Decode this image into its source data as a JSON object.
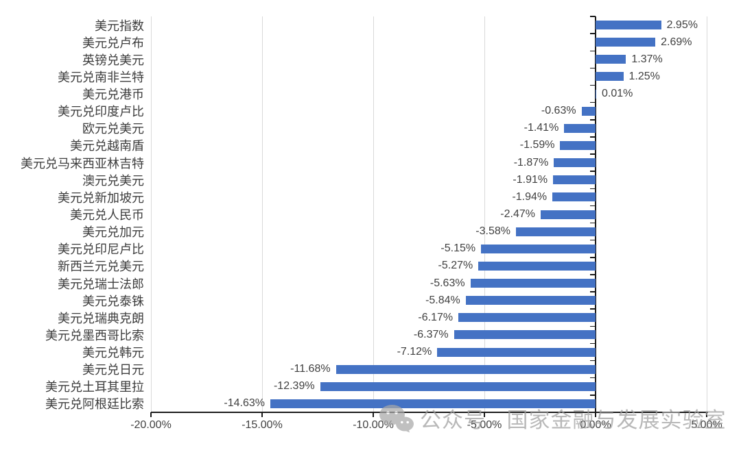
{
  "page": {
    "background": "#ffffff"
  },
  "chart_data": {
    "type": "bar",
    "orientation": "horizontal",
    "title": "",
    "xlabel": "",
    "ylabel": "",
    "grid": true,
    "xlim": [
      -20,
      5
    ],
    "tick_values": [
      -20,
      -15,
      -10,
      -5,
      0,
      5
    ],
    "tick_labels": [
      "-20.00%",
      "-15.00%",
      "-10.00%",
      "-5.00%",
      "0.00%",
      "5.00%"
    ],
    "bar_color": "#4472C4",
    "gridline_color": "#d9d9d9",
    "axis_color": "#1a1a1a",
    "categories": [
      "美元指数",
      "美元兑卢布",
      "英镑兑美元",
      "美元兑南非兰特",
      "美元兑港币",
      "美元兑印度卢比",
      "欧元兑美元",
      "美元兑越南盾",
      "美元兑马来西亚林吉特",
      "澳元兑美元",
      "美元兑新加坡元",
      "美元兑人民币",
      "美元兑加元",
      "美元兑印尼卢比",
      "新西兰元兑美元",
      "美元兑瑞士法郎",
      "美元兑泰铢",
      "美元兑瑞典克朗",
      "美元兑墨西哥比索",
      "美元兑韩元",
      "美元兑日元",
      "美元兑土耳其里拉",
      "美元兑阿根廷比索"
    ],
    "values": [
      2.95,
      2.69,
      1.37,
      1.25,
      0.01,
      -0.63,
      -1.41,
      -1.59,
      -1.87,
      -1.91,
      -1.94,
      -2.47,
      -3.58,
      -5.15,
      -5.27,
      -5.63,
      -5.84,
      -6.17,
      -6.37,
      -7.12,
      -11.68,
      -12.39,
      -14.63
    ],
    "data_labels": [
      "2.95%",
      "2.69%",
      "1.37%",
      "1.25%",
      "0.01%",
      "-0.63%",
      "-1.41%",
      "-1.59%",
      "-1.87%",
      "-1.91%",
      "-1.94%",
      "-2.47%",
      "-3.58%",
      "-5.15%",
      "-5.27%",
      "-5.63%",
      "-5.84%",
      "-6.17%",
      "-6.37%",
      "-7.12%",
      "-11.68%",
      "-12.39%",
      "-14.63%"
    ]
  },
  "watermark": {
    "icon": "wechat-icon",
    "text": "公众号 · 国家金融与发展实验室",
    "color": "#9e9e9e"
  }
}
